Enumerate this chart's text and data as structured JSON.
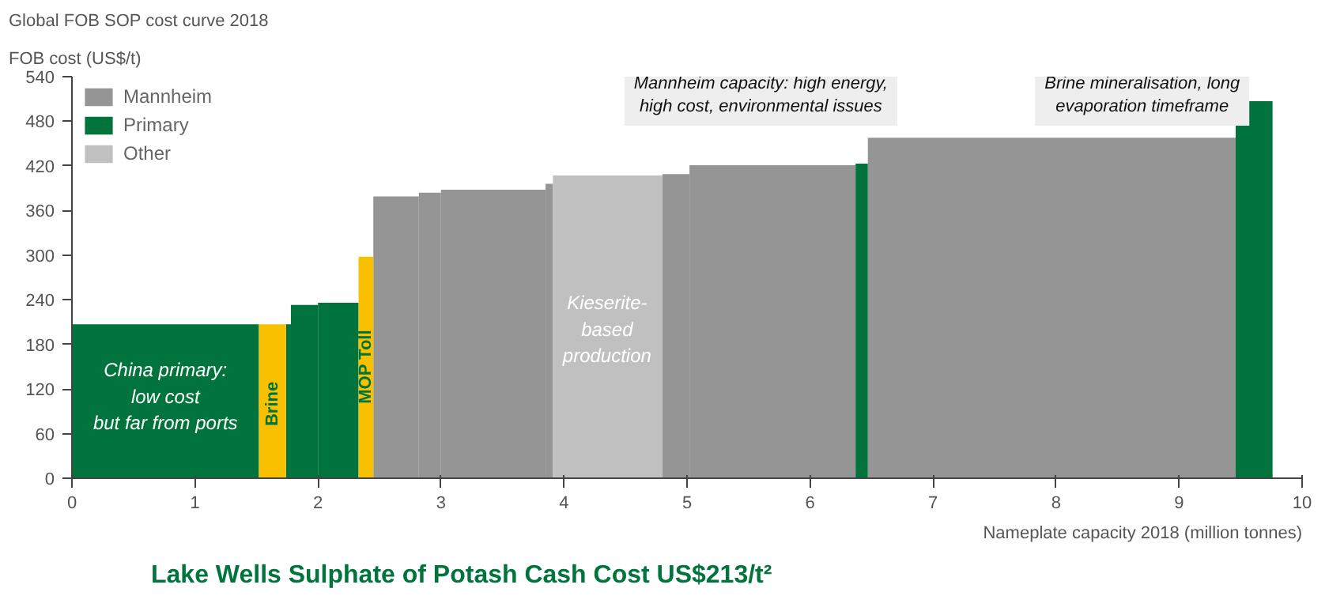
{
  "chart_data": {
    "type": "histogram",
    "title": "Global FOB SOP cost curve 2018",
    "ylabel": "FOB cost (US$/t)",
    "xlabel": "Nameplate capacity 2018 (million tonnes)",
    "bins": [
      0,
      1.52,
      1.74,
      1.78,
      2.0,
      2.33,
      2.45,
      2.82,
      3.0,
      3.85,
      3.91,
      4.8,
      5.02,
      6.37,
      6.47,
      9.46,
      9.76
    ],
    "series": [
      {
        "name": "Mannheim",
        "color": "#959595",
        "values": [
          null,
          null,
          null,
          null,
          null,
          null,
          379,
          384,
          388,
          396,
          null,
          409,
          421,
          null,
          458,
          null
        ]
      },
      {
        "name": "Primary",
        "color": "#00743c",
        "values": [
          207,
          null,
          207,
          233,
          236,
          null,
          null,
          null,
          null,
          null,
          null,
          null,
          null,
          423,
          null,
          507
        ]
      },
      {
        "name": "Other",
        "color": "#c0c0c0",
        "values": [
          null,
          null,
          null,
          null,
          null,
          null,
          null,
          null,
          null,
          null,
          407,
          null,
          null,
          null,
          null,
          null
        ]
      },
      {
        "color": "#f9c000",
        "values": [
          null,
          207,
          null,
          null,
          null,
          298,
          null,
          null,
          null,
          null,
          null,
          null,
          null,
          null,
          null,
          null
        ]
      }
    ],
    "xlim": [
      0,
      10
    ],
    "ylim": [
      0,
      540
    ],
    "xticks": [
      0,
      1,
      2,
      3,
      4,
      5,
      6,
      7,
      8,
      9,
      10
    ],
    "yticks": [
      0,
      60,
      120,
      180,
      240,
      300,
      360,
      420,
      480,
      540
    ],
    "grid": false,
    "legend": "top left",
    "annotations": [
      "China primary:\nlow cost\nbut far from ports",
      "Brine",
      "MOP Toll",
      "Kieserite-\nbased\nproduction",
      "Mannheim capacity: high energy,\nhigh cost, environmental issues",
      "Brine mineralisation, long\nevaporation timeframe",
      "Lake Wells Sulphate of Potash Cash Cost US$213/t²"
    ]
  }
}
